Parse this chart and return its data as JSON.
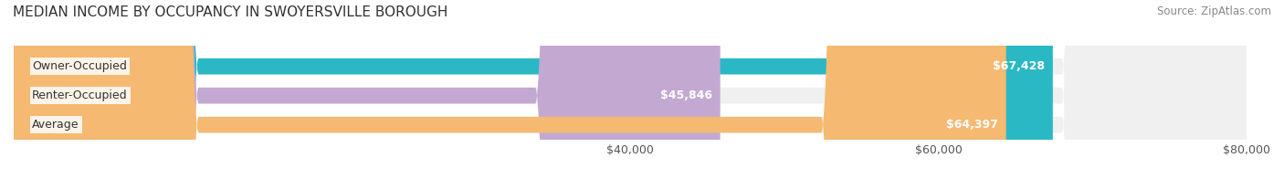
{
  "title": "MEDIAN INCOME BY OCCUPANCY IN SWOYERSVILLE BOROUGH",
  "source": "Source: ZipAtlas.com",
  "categories": [
    "Owner-Occupied",
    "Renter-Occupied",
    "Average"
  ],
  "values": [
    67428,
    45846,
    64397
  ],
  "bar_colors": [
    "#2ab8c5",
    "#c3a8d1",
    "#f5b971"
  ],
  "bar_labels": [
    "$67,428",
    "$45,846",
    "$64,397"
  ],
  "label_bg": "#ffffff",
  "xlim": [
    0,
    80000
  ],
  "xticks": [
    40000,
    60000,
    80000
  ],
  "xticklabels": [
    "$40,000",
    "$60,000",
    "$80,000"
  ],
  "background_color": "#ffffff",
  "bar_bg_color": "#f0f0f0",
  "title_fontsize": 11,
  "source_fontsize": 8.5,
  "tick_fontsize": 9,
  "bar_label_fontsize": 9,
  "category_fontsize": 9
}
